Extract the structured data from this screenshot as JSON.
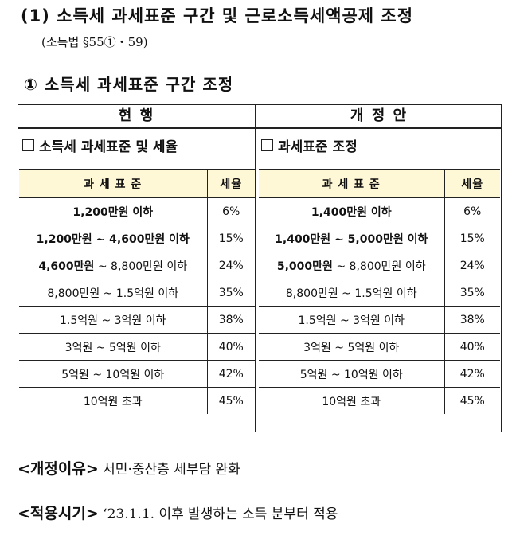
{
  "title": "(1) 소득세 과세표준 구간 및 근로소득세액공제 조정",
  "subtitle": "(소득법 §55①・59)",
  "section": "① 소득세 과세표준 구간 조정",
  "current": {
    "header": "현    행",
    "subheader": "소득세 과세표준 및 세율",
    "col_base": "과 세 표 준",
    "col_rate": "세율",
    "rows": [
      {
        "base": "1,200만원 이하",
        "rate": "6%"
      },
      {
        "base": "1,200만원 ~ 4,600만원 이하",
        "rate": "15%"
      },
      {
        "base_bold": "4,600만원",
        "base_rest": " ~ 8,800만원 이하",
        "rate": "24%"
      },
      {
        "base": "8,800만원 ~ 1.5억원 이하",
        "rate": "35%"
      },
      {
        "base": "1.5억원 ~ 3억원 이하",
        "rate": "38%"
      },
      {
        "base": "3억원 ~ 5억원 이하",
        "rate": "40%"
      },
      {
        "base": "5억원 ~ 10억원 이하",
        "rate": "42%"
      },
      {
        "base": "10억원 초과",
        "rate": "45%"
      }
    ]
  },
  "proposed": {
    "header": "개   정   안",
    "subheader": "과세표준 조정",
    "col_base": "과 세 표 준",
    "col_rate": "세율",
    "rows": [
      {
        "base": "1,400만원 이하",
        "rate": "6%"
      },
      {
        "base": "1,400만원 ~ 5,000만원 이하",
        "rate": "15%"
      },
      {
        "base_bold": "5,000만원",
        "base_rest": " ~ 8,800만원 이하",
        "rate": "24%"
      },
      {
        "base": "8,800만원 ~ 1.5억원 이하",
        "rate": "35%"
      },
      {
        "base": "1.5억원 ~ 3억원 이하",
        "rate": "38%"
      },
      {
        "base": "3억원 ~ 5억원 이하",
        "rate": "40%"
      },
      {
        "base": "5억원 ~ 10억원 이하",
        "rate": "42%"
      },
      {
        "base": "10억원 초과",
        "rate": "45%"
      }
    ]
  },
  "reason": {
    "label": "<개정이유>",
    "text": " 서민·중산층 세부담 완화"
  },
  "effective": {
    "label": "<적용시기>",
    "text": " ‘23.1.1. 이후 발생하는 소득 분부터 적용"
  }
}
